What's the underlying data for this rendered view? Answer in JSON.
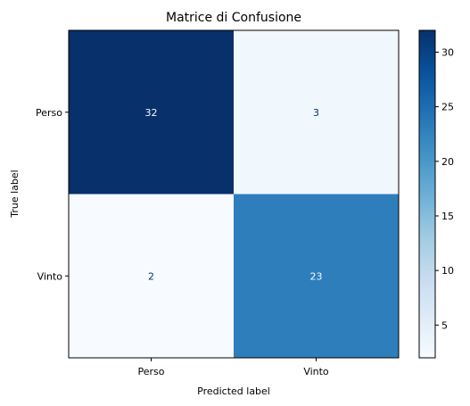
{
  "chart_data": {
    "type": "heatmap",
    "title": "Matrice di Confusione",
    "xlabel": "Predicted label",
    "ylabel": "True label",
    "x_categories": [
      "Perso",
      "Vinto"
    ],
    "y_categories": [
      "Perso",
      "Vinto"
    ],
    "values": [
      [
        32,
        3
      ],
      [
        2,
        23
      ]
    ],
    "colormap": "Blues",
    "colorbar": {
      "min": 2,
      "max": 32,
      "ticks": [
        5,
        10,
        15,
        20,
        25,
        30
      ]
    },
    "colors": {
      "high": "#08306b",
      "low": "#f7fbff"
    }
  }
}
